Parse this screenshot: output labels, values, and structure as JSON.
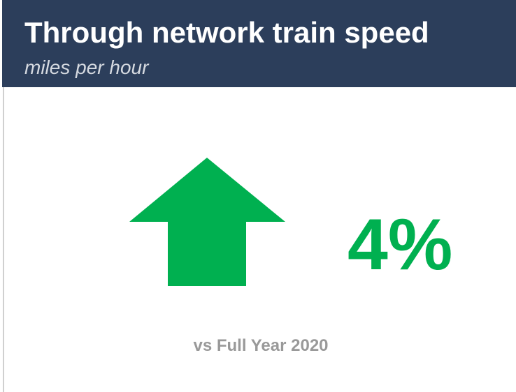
{
  "header": {
    "title": "Through network train speed",
    "subtitle": "miles per hour"
  },
  "kpi": {
    "value": "4%",
    "comparison": "vs Full Year 2020"
  }
}
